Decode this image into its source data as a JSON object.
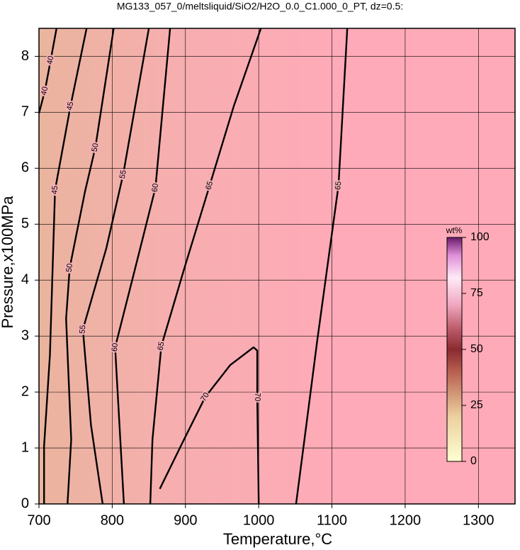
{
  "chart_data": {
    "type": "contour",
    "title": "MG133_057_0/meltsliquid/SiO2/H2O_0.0_C1.000_0_PT, dz=0.5:",
    "xlabel": "Temperature,°C",
    "ylabel": "Pressure,x100MPa",
    "xlim": [
      700,
      1350
    ],
    "ylim": [
      0,
      8.5
    ],
    "xticks": [
      700,
      800,
      900,
      1000,
      1100,
      1200,
      1300
    ],
    "yticks": [
      0,
      1,
      2,
      3,
      4,
      5,
      6,
      7,
      8
    ],
    "grid": true,
    "colorbar": {
      "label": "wt%",
      "lim": [
        0,
        100
      ],
      "ticks": [
        0,
        25,
        50,
        75,
        100
      ]
    },
    "series": [
      {
        "level": 40,
        "x": [
          700,
          708,
          716,
          724
        ],
        "y": [
          6.98,
          7.38,
          7.93,
          8.5
        ]
      },
      {
        "level": 45,
        "x": [
          707,
          707,
          715,
          722,
          743,
          765
        ],
        "y": [
          0,
          1.03,
          2.67,
          5.61,
          7.11,
          8.5
        ]
      },
      {
        "level": 50,
        "x": [
          739,
          744,
          737,
          742,
          763,
          777,
          802
        ],
        "y": [
          0,
          1.15,
          3.31,
          4.22,
          5.59,
          6.37,
          8.5
        ]
      },
      {
        "level": 55,
        "x": [
          787,
          771,
          760,
          792,
          815,
          850
        ],
        "y": [
          0,
          1.41,
          3.12,
          4.57,
          5.89,
          8.5
        ]
      },
      {
        "level": 60,
        "x": [
          816,
          811,
          804,
          831,
          859,
          879
        ],
        "y": [
          0,
          1.15,
          2.8,
          4.19,
          5.65,
          8.5
        ]
      },
      {
        "level": 65,
        "x": [
          852,
          855,
          867,
          898,
          933,
          966,
          1003
        ],
        "y": [
          0,
          1.15,
          2.82,
          4.19,
          5.69,
          7.11,
          8.5
        ]
      },
      {
        "level": 65,
        "x": [
          1051,
          1065,
          1080,
          1109,
          1121
        ],
        "y": [
          0,
          1.41,
          2.93,
          5.69,
          8.5
        ]
      },
      {
        "level": 70,
        "x": [
          865,
          898,
          927,
          961,
          993,
          998,
          998,
          1000
        ],
        "y": [
          0.27,
          1.15,
          1.91,
          2.48,
          2.8,
          2.74,
          1.91,
          0
        ]
      }
    ]
  }
}
